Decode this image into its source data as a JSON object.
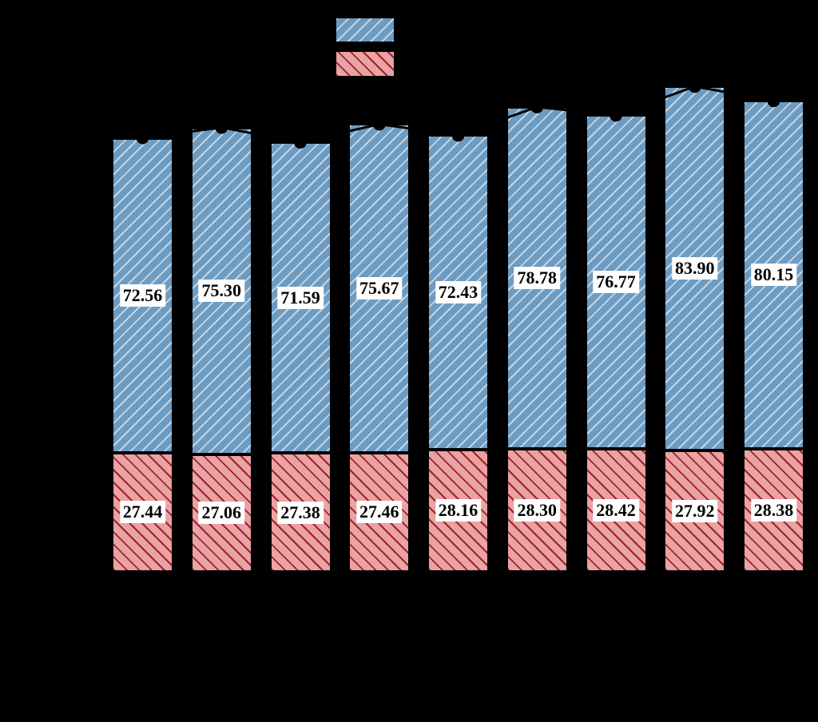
{
  "page": {
    "background_color": "#000000",
    "visible_text_note": "Axis ticks, axis titles, chart title and legend label text are rendered black on a black background and are not visible; only bars, value labels, legend swatches and the totals line/markers are visible."
  },
  "legend": {
    "labels_visible": false,
    "items": [
      {
        "id": "blue-series-swatch",
        "fill": "#6a9cc4",
        "hatch": "/",
        "hatch_color": "#ccd3da"
      },
      {
        "id": "red-series-swatch",
        "fill": "#e9a3a2",
        "hatch": "\\",
        "hatch_color": "#9e2030"
      }
    ]
  },
  "chart_data": {
    "type": "bar",
    "stacked": true,
    "orientation": "vertical",
    "bars_count": 9,
    "grid": false,
    "series": [
      {
        "name": "blue-hatched-top-segment",
        "color": "#6a9cc4",
        "hatch": "/",
        "hatch_color": "#ccd3da",
        "values": [
          72.56,
          75.3,
          71.59,
          75.67,
          72.43,
          78.78,
          76.77,
          83.9,
          80.15
        ],
        "labels": [
          "72.56",
          "75.30",
          "71.59",
          "75.67",
          "72.43",
          "78.78",
          "76.77",
          "83.90",
          "80.15"
        ]
      },
      {
        "name": "red-hatched-bottom-segment",
        "color": "#e9a3a2",
        "hatch": "\\",
        "hatch_color": "#9e2030",
        "values": [
          27.44,
          27.06,
          27.38,
          27.46,
          28.16,
          28.3,
          28.42,
          27.92,
          28.38
        ],
        "labels": [
          "27.44",
          "27.06",
          "27.38",
          "27.46",
          "28.16",
          "28.30",
          "28.42",
          "27.92",
          "28.38"
        ]
      }
    ],
    "totals_line": {
      "description": "black line with filled circular markers placed at the top of each stacked bar (sum of both segments)",
      "color": "#000000",
      "marker": "circle"
    },
    "value_label_style": {
      "background": "#ffffff",
      "color": "#000000",
      "bold": true
    }
  }
}
